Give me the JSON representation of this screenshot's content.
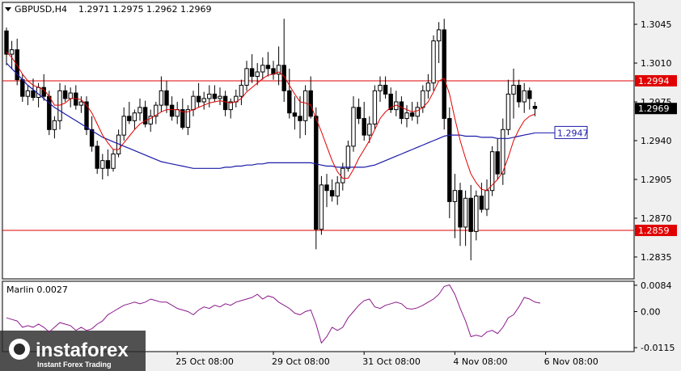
{
  "header": {
    "symbol_tf": "GBPUSD,H4",
    "ohlc": "1.2971 1.2975 1.2962 1.2969"
  },
  "indicator": {
    "label": "Marlin 0.0027"
  },
  "watermark": {
    "brand": "instaforex",
    "tagline": "Instant Forex Trading"
  },
  "colors": {
    "bg": "#f0f0f0",
    "candle": "#000000",
    "fast_ma": "#e00000",
    "slow_ma": "#1a1aa8",
    "level": "#e00000",
    "osc": "#8b1a8b",
    "callout": "#1a1aa8"
  },
  "chart_data": {
    "type": "candlestick",
    "symbol": "GBPUSD",
    "timeframe": "H4",
    "ylim": [
      1.2816,
      1.3064
    ],
    "price_ticks": [
      "1.3045",
      "1.3010",
      "1.2975",
      "1.2940",
      "1.2905",
      "1.2870",
      "1.2835"
    ],
    "x_labels": [
      "25 Oct 08:00",
      "29 Oct 08:00",
      "31 Oct 08:00",
      "4 Nov 08:00",
      "6 Nov 08:00"
    ],
    "x_label_index": [
      32,
      50,
      67,
      84,
      101
    ],
    "levels": [
      {
        "value": 1.2994,
        "label": "1.2994"
      },
      {
        "value": 1.2859,
        "label": "1.2859"
      }
    ],
    "current_price": {
      "value": 1.2969,
      "label": "1.2969"
    },
    "ma_callout": {
      "value": 1.2947,
      "label": "1.2947"
    },
    "candles": [
      [
        1.3039,
        1.3042,
        1.3008,
        1.3018
      ],
      [
        1.3018,
        1.303,
        1.3005,
        1.3022
      ],
      [
        1.3022,
        1.3032,
        1.299,
        1.2995
      ],
      [
        1.2995,
        1.3,
        1.2975,
        1.298
      ],
      [
        1.298,
        1.299,
        1.2972,
        1.2985
      ],
      [
        1.2985,
        1.2996,
        1.2976,
        1.2979
      ],
      [
        1.2979,
        1.2992,
        1.297,
        1.2988
      ],
      [
        1.2988,
        1.3,
        1.2976,
        1.298
      ],
      [
        1.298,
        1.2985,
        1.2945,
        1.295
      ],
      [
        1.295,
        1.2962,
        1.2942,
        1.2958
      ],
      [
        1.2958,
        1.2992,
        1.295,
        1.2985
      ],
      [
        1.2985,
        1.299,
        1.2975,
        1.2978
      ],
      [
        1.2978,
        1.2988,
        1.297,
        1.2983
      ],
      [
        1.2983,
        1.299,
        1.2968,
        1.2972
      ],
      [
        1.2972,
        1.298,
        1.2965,
        1.2975
      ],
      [
        1.2975,
        1.298,
        1.2945,
        1.295
      ],
      [
        1.295,
        1.2962,
        1.293,
        1.2935
      ],
      [
        1.2935,
        1.294,
        1.291,
        1.2915
      ],
      [
        1.2915,
        1.2928,
        1.2905,
        1.2922
      ],
      [
        1.2922,
        1.2932,
        1.2908,
        1.2915
      ],
      [
        1.2915,
        1.2932,
        1.2912,
        1.2928
      ],
      [
        1.2928,
        1.295,
        1.2925,
        1.2945
      ],
      [
        1.2945,
        1.297,
        1.294,
        1.2962
      ],
      [
        1.2962,
        1.2975,
        1.2955,
        1.2958
      ],
      [
        1.2958,
        1.2968,
        1.295,
        1.2965
      ],
      [
        1.2965,
        1.2978,
        1.2958,
        1.297
      ],
      [
        1.297,
        1.2976,
        1.2952,
        1.2955
      ],
      [
        1.2955,
        1.2968,
        1.2948,
        1.2962
      ],
      [
        1.2962,
        1.2975,
        1.2955,
        1.2972
      ],
      [
        1.2972,
        1.2998,
        1.2966,
        1.2985
      ],
      [
        1.2985,
        1.2994,
        1.2965,
        1.2972
      ],
      [
        1.2972,
        1.298,
        1.2958,
        1.2962
      ],
      [
        1.2962,
        1.2975,
        1.2955,
        1.2968
      ],
      [
        1.2968,
        1.2978,
        1.295,
        1.2952
      ],
      [
        1.2952,
        1.2972,
        1.2945,
        1.2968
      ],
      [
        1.2968,
        1.2985,
        1.2962,
        1.298
      ],
      [
        1.298,
        1.2992,
        1.297,
        1.2975
      ],
      [
        1.2975,
        1.2984,
        1.2968,
        1.2978
      ],
      [
        1.2978,
        1.299,
        1.297,
        1.2982
      ],
      [
        1.2982,
        1.299,
        1.2975,
        1.2978
      ],
      [
        1.2978,
        1.2988,
        1.2972,
        1.298
      ],
      [
        1.298,
        1.2985,
        1.2962,
        1.2968
      ],
      [
        1.2968,
        1.2978,
        1.296,
        1.2975
      ],
      [
        1.2975,
        1.2986,
        1.297,
        1.298
      ],
      [
        1.298,
        1.2995,
        1.2972,
        1.299
      ],
      [
        1.299,
        1.3012,
        1.2985,
        1.3005
      ],
      [
        1.3005,
        1.3018,
        1.2992,
        1.2998
      ],
      [
        1.2998,
        1.301,
        1.299,
        1.3002
      ],
      [
        1.3002,
        1.3015,
        1.2995,
        1.3008
      ],
      [
        1.3008,
        1.302,
        1.2998,
        1.3005
      ],
      [
        1.3005,
        1.3012,
        1.2995,
        1.3
      ],
      [
        1.3,
        1.3025,
        1.299,
        1.3008
      ],
      [
        1.3008,
        1.305,
        1.2975,
        1.2985
      ],
      [
        1.2985,
        1.3005,
        1.296,
        1.2965
      ],
      [
        1.2965,
        1.298,
        1.295,
        1.2962
      ],
      [
        1.2962,
        1.298,
        1.2942,
        1.2958
      ],
      [
        1.2958,
        1.299,
        1.2945,
        1.2985
      ],
      [
        1.2985,
        1.2998,
        1.296,
        1.2962
      ],
      [
        1.2962,
        1.297,
        1.2842,
        1.286
      ],
      [
        1.286,
        1.2908,
        1.2855,
        1.29
      ],
      [
        1.29,
        1.291,
        1.288,
        1.2895
      ],
      [
        1.2895,
        1.2905,
        1.2885,
        1.289
      ],
      [
        1.289,
        1.2908,
        1.2882,
        1.2902
      ],
      [
        1.2902,
        1.292,
        1.2895,
        1.2915
      ],
      [
        1.2915,
        1.294,
        1.2912,
        1.2935
      ],
      [
        1.2935,
        1.298,
        1.293,
        1.297
      ],
      [
        1.297,
        1.2978,
        1.2955,
        1.296
      ],
      [
        1.296,
        1.2975,
        1.294,
        1.2945
      ],
      [
        1.2945,
        1.2962,
        1.2938,
        1.2955
      ],
      [
        1.2955,
        1.299,
        1.295,
        1.2985
      ],
      [
        1.2985,
        1.2998,
        1.2975,
        1.299
      ],
      [
        1.299,
        1.2998,
        1.2978,
        1.2982
      ],
      [
        1.2982,
        1.2988,
        1.2965,
        1.2968
      ],
      [
        1.2968,
        1.2985,
        1.2962,
        1.2975
      ],
      [
        1.2975,
        1.298,
        1.2955,
        1.296
      ],
      [
        1.296,
        1.2972,
        1.2952,
        1.2965
      ],
      [
        1.2965,
        1.2975,
        1.2958,
        1.2962
      ],
      [
        1.2962,
        1.2975,
        1.2955,
        1.297
      ],
      [
        1.297,
        1.299,
        1.2965,
        1.2985
      ],
      [
        1.2985,
        1.3,
        1.2978,
        1.2992
      ],
      [
        1.2992,
        1.3035,
        1.2985,
        1.303
      ],
      [
        1.303,
        1.3047,
        1.301,
        1.304
      ],
      [
        1.304,
        1.305,
        1.295,
        1.296
      ],
      [
        1.296,
        1.297,
        1.287,
        1.2885
      ],
      [
        1.2885,
        1.291,
        1.2852,
        1.2895
      ],
      [
        1.2895,
        1.2902,
        1.2845,
        1.2862
      ],
      [
        1.2862,
        1.2895,
        1.2845,
        1.2888
      ],
      [
        1.2888,
        1.29,
        1.2832,
        1.2858
      ],
      [
        1.2858,
        1.2895,
        1.285,
        1.289
      ],
      [
        1.289,
        1.2902,
        1.2875,
        1.2878
      ],
      [
        1.2878,
        1.2905,
        1.2872,
        1.2895
      ],
      [
        1.2895,
        1.2935,
        1.289,
        1.293
      ],
      [
        1.293,
        1.2942,
        1.2905,
        1.291
      ],
      [
        1.291,
        1.296,
        1.29,
        1.295
      ],
      [
        1.295,
        1.2995,
        1.2945,
        1.2982
      ],
      [
        1.2982,
        1.3005,
        1.296,
        1.299
      ],
      [
        1.299,
        1.2995,
        1.297,
        1.2975
      ],
      [
        1.2975,
        1.2992,
        1.2965,
        1.2985
      ],
      [
        1.2985,
        1.2988,
        1.2968,
        1.2978
      ],
      [
        1.2971,
        1.2975,
        1.2962,
        1.2969
      ]
    ],
    "fast_ma": [
      1.302,
      1.3015,
      1.3008,
      1.3,
      1.2994,
      1.299,
      1.2988,
      1.2986,
      1.298,
      1.2972,
      1.2972,
      1.2974,
      1.2978,
      1.2978,
      1.2977,
      1.2972,
      1.2965,
      1.2955,
      1.2945,
      1.2938,
      1.2932,
      1.2932,
      1.2938,
      1.2944,
      1.295,
      1.2955,
      1.2958,
      1.296,
      1.2963,
      1.2966,
      1.2968,
      1.2968,
      1.2968,
      1.2966,
      1.2966,
      1.2968,
      1.297,
      1.2972,
      1.2974,
      1.2975,
      1.2976,
      1.2975,
      1.2974,
      1.2975,
      1.2978,
      1.2984,
      1.2988,
      1.2992,
      1.2996,
      1.2999,
      1.3,
      1.3002,
      1.2998,
      1.299,
      1.2982,
      1.2975,
      1.2974,
      1.2972,
      1.296,
      1.2948,
      1.2935,
      1.2922,
      1.2912,
      1.2906,
      1.2906,
      1.2914,
      1.2924,
      1.2932,
      1.294,
      1.295,
      1.296,
      1.2966,
      1.297,
      1.2972,
      1.297,
      1.2968,
      1.2966,
      1.2967,
      1.297,
      1.2975,
      1.2984,
      1.2994,
      1.2996,
      1.2982,
      1.296,
      1.294,
      1.2924,
      1.291,
      1.2902,
      1.2896,
      1.2895,
      1.29,
      1.2905,
      1.2912,
      1.2925,
      1.294,
      1.295,
      1.2958,
      1.2962,
      1.2964
    ],
    "slow_ma": [
      1.301,
      1.3005,
      1.3,
      1.2995,
      1.299,
      1.2986,
      1.2982,
      1.2978,
      1.2974,
      1.297,
      1.2967,
      1.2964,
      1.2961,
      1.2958,
      1.2955,
      1.2952,
      1.2949,
      1.2946,
      1.2943,
      1.2941,
      1.2939,
      1.2937,
      1.2935,
      1.2933,
      1.2931,
      1.2929,
      1.2927,
      1.2925,
      1.2923,
      1.2921,
      1.292,
      1.2919,
      1.2918,
      1.2917,
      1.2916,
      1.2915,
      1.2915,
      1.2915,
      1.2915,
      1.2915,
      1.2915,
      1.2916,
      1.2916,
      1.2917,
      1.2917,
      1.2918,
      1.2918,
      1.2919,
      1.2919,
      1.292,
      1.292,
      1.292,
      1.292,
      1.292,
      1.292,
      1.292,
      1.292,
      1.292,
      1.2919,
      1.2918,
      1.2917,
      1.2917,
      1.2916,
      1.2916,
      1.2916,
      1.2916,
      1.2916,
      1.2916,
      1.2917,
      1.2918,
      1.292,
      1.2922,
      1.2924,
      1.2926,
      1.2928,
      1.293,
      1.2932,
      1.2934,
      1.2936,
      1.2938,
      1.294,
      1.2942,
      1.2944,
      1.2945,
      1.2945,
      1.2945,
      1.2944,
      1.2944,
      1.2944,
      1.2943,
      1.2943,
      1.2943,
      1.2942,
      1.2942,
      1.2942,
      1.2943,
      1.2944,
      1.2945,
      1.2946,
      1.2947
    ],
    "oscillator": {
      "name": "Marlin",
      "value_label": "0.0027",
      "ylim": [
        -0.0125,
        0.0094
      ],
      "ticks": [
        "0.0084",
        "0.00",
        "-0.0115"
      ],
      "values": [
        -0.002,
        -0.0025,
        -0.003,
        -0.005,
        -0.0045,
        -0.005,
        -0.004,
        -0.005,
        -0.0065,
        -0.005,
        -0.0035,
        -0.004,
        -0.0045,
        -0.006,
        -0.005,
        -0.006,
        -0.0055,
        -0.004,
        -0.003,
        -0.001,
        0.0,
        0.001,
        0.002,
        0.0025,
        0.003,
        0.0025,
        0.003,
        0.004,
        0.0035,
        0.003,
        0.003,
        0.002,
        0.001,
        0.0005,
        0.0,
        -0.001,
        0.0005,
        0.0015,
        0.001,
        0.002,
        0.0015,
        0.0025,
        0.002,
        0.003,
        0.0035,
        0.004,
        0.0045,
        0.0055,
        0.004,
        0.005,
        0.0045,
        0.003,
        0.002,
        0.001,
        -0.0005,
        -0.001,
        0.0,
        0.0005,
        -0.004,
        -0.01,
        -0.008,
        -0.005,
        -0.006,
        -0.005,
        -0.002,
        0.0,
        0.002,
        0.0035,
        0.004,
        0.0015,
        0.001,
        0.002,
        0.0025,
        0.003,
        0.0025,
        0.001,
        0.0008,
        0.0012,
        0.002,
        0.003,
        0.004,
        0.0055,
        0.008,
        0.0085,
        0.0055,
        0.001,
        -0.003,
        -0.008,
        -0.0075,
        -0.008,
        -0.0065,
        -0.006,
        -0.007,
        -0.005,
        -0.002,
        -0.001,
        0.0015,
        0.0045,
        0.004,
        0.003,
        0.0027
      ]
    }
  }
}
